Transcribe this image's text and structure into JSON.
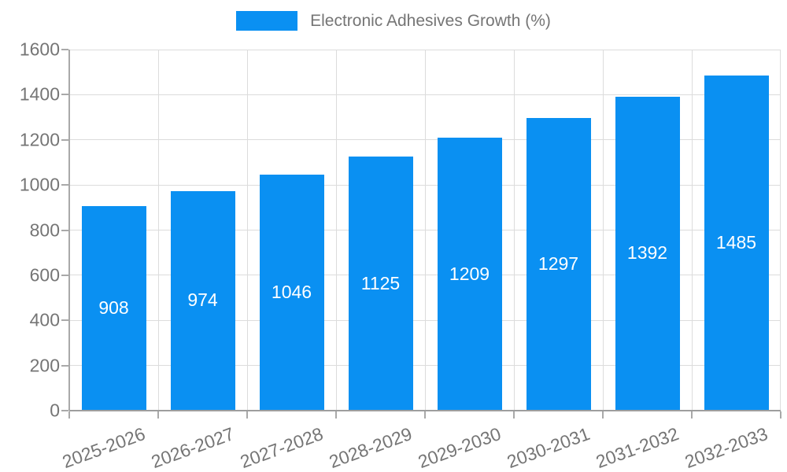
{
  "chart_data": {
    "type": "bar",
    "title": "Electronic Adhesives Growth (%)",
    "categories": [
      "2025-2026",
      "2026-2027",
      "2027-2028",
      "2028-2029",
      "2029-2030",
      "2030-2031",
      "2031-2032",
      "2032-2033"
    ],
    "values": [
      908,
      974,
      1046,
      1125,
      1209,
      1297,
      1392,
      1485
    ],
    "series_name": "Electronic Adhesives Growth (%)",
    "xlabel": "",
    "ylabel": "",
    "ylim": [
      0,
      1600
    ],
    "ytick_step": 200,
    "ytick_labels": [
      "0",
      "200",
      "400",
      "600",
      "800",
      "1000",
      "1200",
      "1400",
      "1600"
    ],
    "grid": true,
    "legend_position": "top",
    "value_labels_visible": true,
    "colors": {
      "bar": "#0a90f2",
      "bar_value_label": "#ffffff",
      "axis_text": "#757575",
      "gridline": "#dcdcdc",
      "axis_line": "#9e9e9e",
      "background": "#ffffff"
    }
  },
  "legend": {
    "label": "Electronic Adhesives Growth (%)"
  }
}
